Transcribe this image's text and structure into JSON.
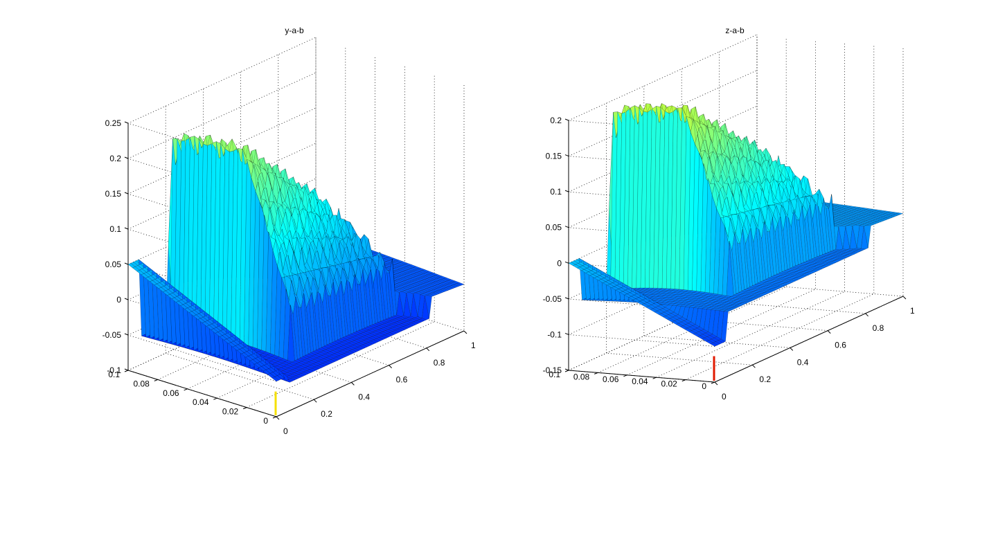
{
  "figure_bg": "#ffffff",
  "chart_data": [
    {
      "type": "surface",
      "title": "y-a-b",
      "xlabel": "",
      "ylabel": "",
      "zlabel": "",
      "xlim": [
        0,
        1
      ],
      "ylim": [
        0,
        0.1
      ],
      "zlim": [
        -0.1,
        0.25
      ],
      "x_ticks": [
        "0",
        "0.2",
        "0.4",
        "0.6",
        "0.8",
        "1"
      ],
      "y_ticks": [
        "0",
        "0.02",
        "0.04",
        "0.06",
        "0.08",
        "0.1"
      ],
      "z_ticks": [
        "-0.1",
        "-0.05",
        "0",
        "0.05",
        "0.1",
        "0.15",
        "0.2",
        "0.25"
      ],
      "grid": true,
      "colormap": "jet",
      "features": {
        "far_edge_value_start": 0.05,
        "far_edge_value_end": -0.05,
        "ridge_peak": 0.22,
        "ridge_start_x": 0.2,
        "trough_min": -0.1,
        "spike_color": "#f5e000"
      }
    },
    {
      "type": "surface",
      "title": "z-a-b",
      "xlabel": "",
      "ylabel": "",
      "zlabel": "",
      "xlim": [
        0,
        1
      ],
      "ylim": [
        0,
        0.1
      ],
      "zlim": [
        -0.15,
        0.2
      ],
      "x_ticks": [
        "0",
        "0.2",
        "0.4",
        "0.6",
        "0.8",
        "1"
      ],
      "y_ticks": [
        "0",
        "0.02",
        "0.04",
        "0.06",
        "0.08",
        "0.1"
      ],
      "z_ticks": [
        "-0.15",
        "-0.1",
        "-0.05",
        "0",
        "0.05",
        "0.1",
        "0.15",
        "0.2"
      ],
      "grid": true,
      "colormap": "jet",
      "features": {
        "far_edge_value_start": 0.0,
        "far_edge_value_end": -0.1,
        "ridge_peak": 0.2,
        "ridge_start_x": 0.2,
        "trough_min": -0.12,
        "spike_color": "#e01a00"
      }
    }
  ]
}
